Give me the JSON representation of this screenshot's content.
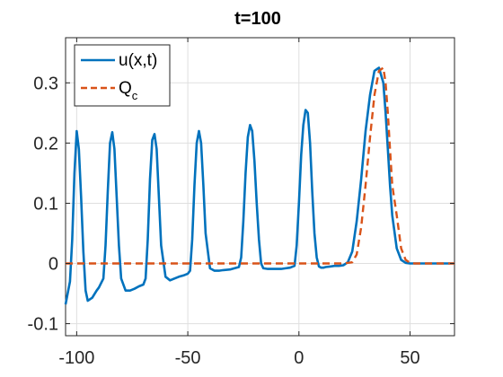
{
  "chart_data": {
    "type": "line",
    "title": "t=100",
    "xlabel": "",
    "ylabel": "",
    "xlim": [
      -105,
      70
    ],
    "ylim": [
      -0.12,
      0.375
    ],
    "grid": true,
    "legend_position": "top-left",
    "x_ticks": [
      -100,
      -50,
      0,
      50
    ],
    "x_tick_labels": [
      "-100",
      "-50",
      "0",
      "50"
    ],
    "y_ticks": [
      -0.1,
      0,
      0.1,
      0.2,
      0.3
    ],
    "y_tick_labels": [
      "-0.1",
      "0",
      "0.1",
      "0.2",
      "0.3"
    ],
    "series": [
      {
        "name": "u(x,t)",
        "color": "#0072BD",
        "style": "solid",
        "x": [
          -105,
          -103,
          -102,
          -101,
          -100,
          -99,
          -98,
          -97,
          -96,
          -95,
          -93,
          -91,
          -90,
          -88,
          -87,
          -86,
          -85,
          -84,
          -83,
          -82,
          -81,
          -80,
          -78,
          -76,
          -74,
          -72,
          -70,
          -69,
          -68,
          -67,
          -66,
          -65,
          -64,
          -63,
          -62,
          -60,
          -58,
          -56,
          -54,
          -52,
          -50,
          -49,
          -48,
          -47,
          -46,
          -45,
          -44,
          -43,
          -42,
          -40,
          -38,
          -36,
          -34,
          -31,
          -29,
          -27,
          -26,
          -25,
          -24,
          -23,
          -22,
          -21,
          -20,
          -19,
          -18,
          -17,
          -16,
          -14,
          -12,
          -10,
          -8,
          -6,
          -4,
          -2,
          -1,
          0,
          1,
          2,
          3,
          4,
          5,
          6,
          7,
          8,
          9,
          10,
          11,
          12,
          14,
          16,
          18,
          20,
          22,
          24,
          26,
          28,
          30,
          32,
          34,
          36,
          38,
          39,
          40,
          41,
          42,
          44,
          46,
          48,
          50,
          52,
          55,
          60,
          65,
          70
        ],
        "values": [
          -0.068,
          -0.03,
          0.04,
          0.15,
          0.22,
          0.19,
          0.11,
          0.02,
          -0.045,
          -0.062,
          -0.057,
          -0.045,
          -0.04,
          -0.025,
          0.03,
          0.12,
          0.2,
          0.218,
          0.19,
          0.11,
          0.03,
          -0.025,
          -0.045,
          -0.045,
          -0.042,
          -0.038,
          -0.035,
          -0.025,
          0.04,
          0.14,
          0.205,
          0.215,
          0.19,
          0.11,
          0.03,
          -0.022,
          -0.028,
          -0.025,
          -0.022,
          -0.02,
          -0.017,
          -0.012,
          0.04,
          0.13,
          0.2,
          0.22,
          0.2,
          0.13,
          0.05,
          -0.008,
          -0.012,
          -0.012,
          -0.011,
          -0.01,
          -0.008,
          -0.006,
          0.01,
          0.07,
          0.15,
          0.21,
          0.23,
          0.22,
          0.17,
          0.1,
          0.04,
          0.0,
          -0.008,
          -0.009,
          -0.009,
          -0.009,
          -0.009,
          -0.008,
          -0.007,
          -0.004,
          0.03,
          0.1,
          0.18,
          0.23,
          0.255,
          0.25,
          0.2,
          0.12,
          0.05,
          0.01,
          -0.005,
          -0.007,
          -0.007,
          -0.006,
          -0.005,
          -0.004,
          -0.004,
          -0.003,
          0.002,
          0.02,
          0.07,
          0.14,
          0.22,
          0.28,
          0.32,
          0.325,
          0.3,
          0.25,
          0.19,
          0.13,
          0.08,
          0.025,
          0.006,
          0.001,
          0.0,
          0.0,
          0.0,
          0.0,
          0.0,
          0.0
        ]
      },
      {
        "name": "Q_c",
        "color": "#D95319",
        "style": "dashed",
        "x": [
          -105,
          0,
          20,
          24,
          26,
          28,
          30,
          32,
          34,
          36,
          38,
          39,
          40,
          41,
          42,
          44,
          46,
          48,
          50,
          52,
          55,
          60,
          70
        ],
        "values": [
          0.0,
          0.0,
          0.0,
          0.002,
          0.015,
          0.06,
          0.13,
          0.21,
          0.28,
          0.32,
          0.325,
          0.3,
          0.25,
          0.19,
          0.13,
          0.08,
          0.025,
          0.006,
          0.001,
          0.0,
          0.0,
          0.0,
          0.0
        ]
      }
    ],
    "legend": [
      {
        "label": "u(x,t)",
        "base": "u(x,t)",
        "sub": ""
      },
      {
        "label": "Q_c",
        "base": "Q",
        "sub": "c"
      }
    ]
  }
}
